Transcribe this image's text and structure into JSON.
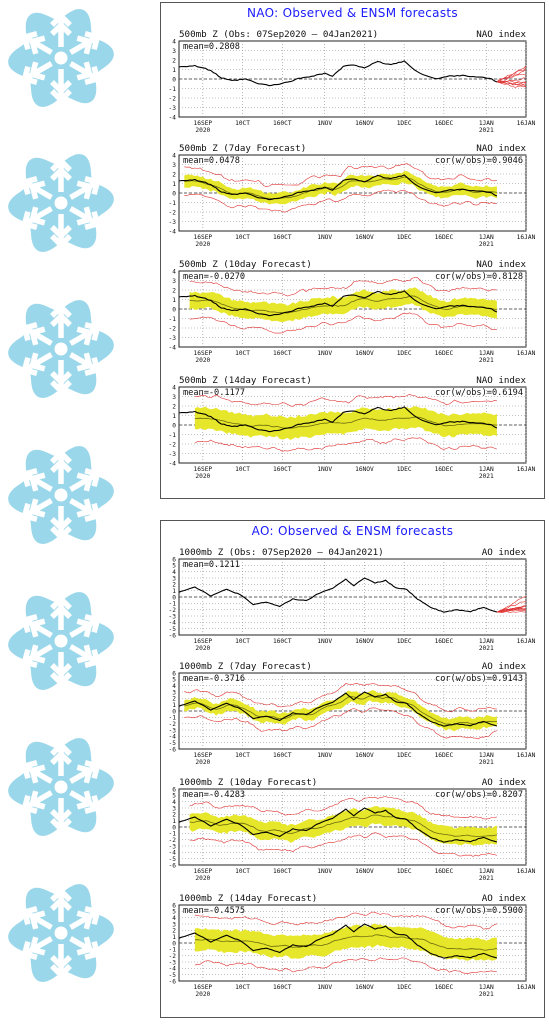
{
  "decor": {
    "icon": "snowflake-icon",
    "color": "#9ad7ea",
    "count": 7
  },
  "panels": [
    {
      "title": "NAO: Observed & ENSM forecasts",
      "x_ticks": [
        "16SEP",
        "10CT",
        "160CT",
        "1NOV",
        "16NOV",
        "1DEC",
        "16DEC",
        "1JAN",
        "16JAN"
      ],
      "year_labels": [
        {
          "tick": "16SEP",
          "year": "2020"
        },
        {
          "tick": "1JAN",
          "year": "2021"
        }
      ],
      "charts": [
        {
          "title": "500mb  Z  (Obs: 07Sep2020 – 04Jan2021)",
          "index": "NAO index",
          "mean": "mean=0.2808",
          "cor": "",
          "kind": "obs"
        },
        {
          "title": "500mb  Z  (7day Forecast)",
          "index": "NAO index",
          "mean": "mean=0.0478",
          "cor": "cor(w/obs)=0.9046",
          "kind": "fc7"
        },
        {
          "title": "500mb  Z  (10day Forecast)",
          "index": "NAO index",
          "mean": "mean=-0.0270",
          "cor": "cor(w/obs)=0.8128",
          "kind": "fc10"
        },
        {
          "title": "500mb  Z  (14day Forecast)",
          "index": "NAO index",
          "mean": "mean=-0.1177",
          "cor": "cor(w/obs)=0.6194",
          "kind": "fc14"
        }
      ]
    },
    {
      "title": "AO: Observed & ENSM forecasts",
      "x_ticks": [
        "16SEP",
        "10CT",
        "160CT",
        "1NOV",
        "16NOV",
        "1DEC",
        "16DEC",
        "1JAN",
        "16JAN"
      ],
      "year_labels": [
        {
          "tick": "16SEP",
          "year": "2020"
        },
        {
          "tick": "1JAN",
          "year": "2021"
        }
      ],
      "charts": [
        {
          "title": "1000mb  Z  (Obs: 07Sep2020 – 04Jan2021)",
          "index": "AO index",
          "mean": "mean=0.1211",
          "cor": "",
          "kind": "obs"
        },
        {
          "title": "1000mb  Z  (7day Forecast)",
          "index": "AO index",
          "mean": "mean=-0.3716",
          "cor": "cor(w/obs)=0.9143",
          "kind": "fc7"
        },
        {
          "title": "1000mb  Z  (10day Forecast)",
          "index": "AO index",
          "mean": "mean=-0.4283",
          "cor": "cor(w/obs)=0.8207",
          "kind": "fc10"
        },
        {
          "title": "1000mb  Z  (14day Forecast)",
          "index": "AO index",
          "mean": "mean=-0.4575",
          "cor": "cor(w/obs)=0.5900",
          "kind": "fc14"
        }
      ]
    }
  ],
  "chart_data": [
    {
      "type": "line",
      "title": "500mb Z (Obs: 07Sep2020 – 04Jan2021)",
      "ylim": [
        -4,
        4
      ],
      "yticks": [
        -4,
        -3,
        -2,
        -1,
        0,
        1,
        2,
        3,
        4
      ],
      "xlim_days": [
        0,
        131
      ],
      "series": [
        {
          "name": "observed",
          "color": "#000000",
          "x": [
            0,
            6,
            12,
            16,
            20,
            25,
            30,
            35,
            40,
            46,
            50,
            55,
            58,
            62,
            66,
            70,
            75,
            80,
            85,
            89,
            93,
            97,
            102,
            107,
            112,
            117,
            120
          ],
          "y": [
            1.3,
            1.4,
            0.9,
            0.1,
            -0.2,
            0.0,
            -0.5,
            -0.7,
            -0.4,
            0.1,
            0.3,
            0.6,
            0.3,
            1.3,
            1.5,
            1.2,
            1.8,
            1.5,
            1.9,
            0.9,
            0.4,
            0.0,
            0.3,
            0.4,
            0.2,
            0.1,
            -0.3
          ]
        }
      ]
    },
    {
      "type": "line",
      "title": "500mb Z (7day Forecast)",
      "ylim": [
        -4,
        4
      ],
      "yticks": [
        -4,
        -3,
        -2,
        -1,
        0,
        1,
        2,
        3,
        4
      ],
      "series": [
        {
          "name": "observed",
          "color": "#000000",
          "x": [
            0,
            6,
            12,
            16,
            20,
            25,
            30,
            35,
            40,
            46,
            50,
            55,
            58,
            62,
            66,
            70,
            75,
            80,
            85,
            89,
            93,
            97,
            102,
            107,
            112,
            117,
            120
          ],
          "y": [
            1.3,
            1.4,
            0.9,
            0.1,
            -0.2,
            0.0,
            -0.5,
            -0.7,
            -0.4,
            0.1,
            0.3,
            0.6,
            0.3,
            1.3,
            1.5,
            1.2,
            1.8,
            1.5,
            1.9,
            0.9,
            0.4,
            0.0,
            0.3,
            0.4,
            0.2,
            0.1,
            -0.3
          ]
        }
      ]
    },
    {
      "type": "line",
      "title": "500mb Z (10day Forecast)",
      "ylim": [
        -4,
        4
      ],
      "yticks": [
        -4,
        -3,
        -2,
        -1,
        0,
        1,
        2,
        3,
        4
      ],
      "series": [
        {
          "name": "observed",
          "color": "#000000",
          "x": [
            0,
            6,
            12,
            16,
            20,
            25,
            30,
            35,
            40,
            46,
            50,
            55,
            58,
            62,
            66,
            70,
            75,
            80,
            85,
            89,
            93,
            97,
            102,
            107,
            112,
            117,
            120
          ],
          "y": [
            1.3,
            1.4,
            0.9,
            0.1,
            -0.2,
            0.0,
            -0.5,
            -0.7,
            -0.4,
            0.1,
            0.3,
            0.6,
            0.3,
            1.3,
            1.5,
            1.2,
            1.8,
            1.5,
            1.9,
            0.9,
            0.4,
            0.0,
            0.3,
            0.4,
            0.2,
            0.1,
            -0.3
          ]
        }
      ]
    },
    {
      "type": "line",
      "title": "500mb Z (14day Forecast)",
      "ylim": [
        -4,
        4
      ],
      "yticks": [
        -4,
        -3,
        -2,
        -1,
        0,
        1,
        2,
        3,
        4
      ],
      "series": [
        {
          "name": "observed",
          "color": "#000000",
          "x": [
            0,
            6,
            12,
            16,
            20,
            25,
            30,
            35,
            40,
            46,
            50,
            55,
            58,
            62,
            66,
            70,
            75,
            80,
            85,
            89,
            93,
            97,
            102,
            107,
            112,
            117,
            120
          ],
          "y": [
            1.3,
            1.4,
            0.9,
            0.1,
            -0.2,
            0.0,
            -0.5,
            -0.7,
            -0.4,
            0.1,
            0.3,
            0.6,
            0.3,
            1.3,
            1.5,
            1.2,
            1.8,
            1.5,
            1.9,
            0.9,
            0.4,
            0.0,
            0.3,
            0.4,
            0.2,
            0.1,
            -0.3
          ]
        }
      ]
    },
    {
      "type": "line",
      "title": "1000mb Z (Obs: 07Sep2020 – 04Jan2021)",
      "ylim": [
        -6,
        6
      ],
      "yticks": [
        -6,
        -5,
        -4,
        -3,
        -2,
        -1,
        0,
        1,
        2,
        3,
        4,
        5,
        6
      ],
      "xlim_days": [
        0,
        131
      ],
      "series": [
        {
          "name": "observed",
          "color": "#000000",
          "x": [
            0,
            6,
            12,
            18,
            23,
            28,
            33,
            38,
            43,
            48,
            53,
            58,
            63,
            66,
            70,
            74,
            78,
            82,
            86,
            90,
            95,
            100,
            105,
            110,
            115,
            120
          ],
          "y": [
            0.8,
            1.6,
            0.2,
            1.2,
            0.4,
            -1.2,
            -0.8,
            -1.5,
            -0.3,
            -0.6,
            0.6,
            1.4,
            2.8,
            1.8,
            3.0,
            2.2,
            2.6,
            1.4,
            1.2,
            -0.3,
            -1.6,
            -2.4,
            -2.0,
            -2.3,
            -1.6,
            -2.4
          ]
        }
      ]
    },
    {
      "type": "line",
      "title": "1000mb Z (7day Forecast)",
      "ylim": [
        -6,
        6
      ],
      "yticks": [
        -6,
        -5,
        -4,
        -3,
        -2,
        -1,
        0,
        1,
        2,
        3,
        4,
        5,
        6
      ],
      "series": [
        {
          "name": "observed",
          "color": "#000000",
          "x": [
            0,
            6,
            12,
            18,
            23,
            28,
            33,
            38,
            43,
            48,
            53,
            58,
            63,
            66,
            70,
            74,
            78,
            82,
            86,
            90,
            95,
            100,
            105,
            110,
            115,
            120
          ],
          "y": [
            0.8,
            1.6,
            0.2,
            1.2,
            0.4,
            -1.2,
            -0.8,
            -1.5,
            -0.3,
            -0.6,
            0.6,
            1.4,
            2.8,
            1.8,
            3.0,
            2.2,
            2.6,
            1.4,
            1.2,
            -0.3,
            -1.6,
            -2.4,
            -2.0,
            -2.3,
            -1.6,
            -2.4
          ]
        }
      ]
    },
    {
      "type": "line",
      "title": "1000mb Z (10day Forecast)",
      "ylim": [
        -6,
        6
      ],
      "yticks": [
        -6,
        -5,
        -4,
        -3,
        -2,
        -1,
        0,
        1,
        2,
        3,
        4,
        5,
        6
      ],
      "series": [
        {
          "name": "observed",
          "color": "#000000",
          "x": [
            0,
            6,
            12,
            18,
            23,
            28,
            33,
            38,
            43,
            48,
            53,
            58,
            63,
            66,
            70,
            74,
            78,
            82,
            86,
            90,
            95,
            100,
            105,
            110,
            115,
            120
          ],
          "y": [
            0.8,
            1.6,
            0.2,
            1.2,
            0.4,
            -1.2,
            -0.8,
            -1.5,
            -0.3,
            -0.6,
            0.6,
            1.4,
            2.8,
            1.8,
            3.0,
            2.2,
            2.6,
            1.4,
            1.2,
            -0.3,
            -1.6,
            -2.4,
            -2.0,
            -2.3,
            -1.6,
            -2.4
          ]
        }
      ]
    },
    {
      "type": "line",
      "title": "1000mb Z (14day Forecast)",
      "ylim": [
        -6,
        6
      ],
      "yticks": [
        -6,
        -5,
        -4,
        -3,
        -2,
        -1,
        0,
        1,
        2,
        3,
        4,
        5,
        6
      ],
      "series": [
        {
          "name": "observed",
          "color": "#000000",
          "x": [
            0,
            6,
            12,
            18,
            23,
            28,
            33,
            38,
            43,
            48,
            53,
            58,
            63,
            66,
            70,
            74,
            78,
            82,
            86,
            90,
            95,
            100,
            105,
            110,
            115,
            120
          ],
          "y": [
            0.8,
            1.6,
            0.2,
            1.2,
            0.4,
            -1.2,
            -0.8,
            -1.5,
            -0.3,
            -0.6,
            0.6,
            1.4,
            2.8,
            1.8,
            3.0,
            2.2,
            2.6,
            1.4,
            1.2,
            -0.3,
            -1.6,
            -2.4,
            -2.0,
            -2.3,
            -1.6,
            -2.4
          ]
        }
      ]
    }
  ],
  "colors": {
    "observed": "#000000",
    "ensemble": "#e03030",
    "spread": "#e6e62a",
    "title": "#1a1aff",
    "grid": "#8a8a8a"
  }
}
